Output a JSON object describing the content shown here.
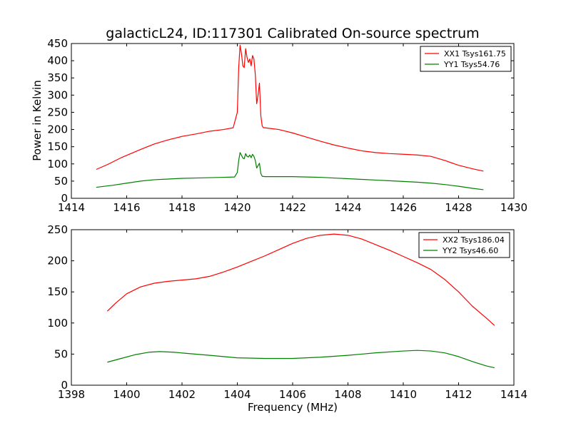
{
  "figure": {
    "title": "galacticL24, ID:117301 Calibrated On-source spectrum",
    "xlabel": "Frequency (MHz)",
    "ylabel": "Power in Kelvin"
  },
  "chart_data": [
    {
      "type": "line",
      "xlim": [
        1414,
        1430
      ],
      "ylim": [
        0,
        450
      ],
      "x_ticks": [
        "1414",
        "1416",
        "1418",
        "1420",
        "1422",
        "1424",
        "1426",
        "1428",
        "1430"
      ],
      "y_ticks": [
        "0",
        "50",
        "100",
        "150",
        "200",
        "250",
        "300",
        "350",
        "400",
        "450"
      ],
      "grid": false,
      "legend_position": "top-right",
      "series": [
        {
          "name": "XX1 Tsys161.75",
          "color": "#ff0000",
          "x": [
            1414.9,
            1415.3,
            1415.8,
            1416.5,
            1417.0,
            1417.5,
            1418.0,
            1418.5,
            1419.0,
            1419.5,
            1419.85,
            1420.0,
            1420.05,
            1420.1,
            1420.15,
            1420.2,
            1420.25,
            1420.3,
            1420.35,
            1420.4,
            1420.45,
            1420.5,
            1420.55,
            1420.6,
            1420.65,
            1420.7,
            1420.75,
            1420.8,
            1420.85,
            1420.9,
            1420.95,
            1421.0,
            1421.5,
            1422.0,
            1422.5,
            1423.0,
            1423.5,
            1424.0,
            1424.5,
            1425.0,
            1425.5,
            1426.0,
            1426.5,
            1427.0,
            1427.5,
            1428.0,
            1428.5,
            1428.9
          ],
          "values": [
            84,
            98,
            118,
            142,
            158,
            170,
            180,
            187,
            195,
            200,
            205,
            250,
            380,
            445,
            420,
            385,
            380,
            435,
            410,
            395,
            405,
            385,
            415,
            405,
            360,
            275,
            300,
            335,
            240,
            210,
            205,
            205,
            200,
            190,
            178,
            166,
            155,
            146,
            138,
            133,
            130,
            128,
            126,
            122,
            110,
            96,
            86,
            79
          ]
        },
        {
          "name": "YY1 Tsys54.76",
          "color": "#008000",
          "x": [
            1414.9,
            1415.5,
            1416.0,
            1416.5,
            1417.0,
            1417.5,
            1418.0,
            1418.5,
            1419.0,
            1419.5,
            1419.9,
            1420.0,
            1420.05,
            1420.1,
            1420.15,
            1420.2,
            1420.25,
            1420.3,
            1420.35,
            1420.4,
            1420.45,
            1420.5,
            1420.55,
            1420.6,
            1420.65,
            1420.7,
            1420.75,
            1420.8,
            1420.85,
            1420.9,
            1421.0,
            1421.5,
            1422.0,
            1422.5,
            1423.0,
            1423.5,
            1424.0,
            1424.5,
            1425.0,
            1425.5,
            1426.0,
            1426.5,
            1427.0,
            1427.5,
            1428.0,
            1428.5,
            1428.9
          ],
          "values": [
            32,
            38,
            44,
            50,
            54,
            56,
            58,
            59,
            60,
            61,
            62,
            75,
            110,
            133,
            125,
            117,
            115,
            130,
            122,
            120,
            126,
            118,
            128,
            122,
            110,
            88,
            95,
            102,
            72,
            64,
            63,
            63,
            63,
            62,
            61,
            59,
            57,
            55,
            53,
            51,
            49,
            47,
            44,
            40,
            35,
            29,
            25
          ]
        }
      ]
    },
    {
      "type": "line",
      "xlim": [
        1398,
        1414
      ],
      "ylim": [
        0,
        250
      ],
      "x_ticks": [
        "1398",
        "1400",
        "1402",
        "1404",
        "1406",
        "1408",
        "1410",
        "1412",
        "1414"
      ],
      "y_ticks": [
        "0",
        "50",
        "100",
        "150",
        "200",
        "250"
      ],
      "grid": false,
      "legend_position": "top-right",
      "series": [
        {
          "name": "XX2 Tsys186.04",
          "color": "#ff0000",
          "x": [
            1399.3,
            1399.6,
            1400.0,
            1400.5,
            1401.0,
            1401.5,
            1402.0,
            1402.5,
            1403.0,
            1403.5,
            1404.0,
            1404.5,
            1405.0,
            1405.5,
            1406.0,
            1406.5,
            1407.0,
            1407.5,
            1408.0,
            1408.5,
            1409.0,
            1409.5,
            1410.0,
            1410.5,
            1411.0,
            1411.5,
            1412.0,
            1412.5,
            1413.0,
            1413.3
          ],
          "values": [
            119,
            132,
            147,
            158,
            164,
            167,
            169,
            171,
            175,
            182,
            190,
            199,
            208,
            218,
            228,
            236,
            241,
            243,
            241,
            235,
            226,
            217,
            207,
            197,
            186,
            170,
            150,
            127,
            108,
            96
          ]
        },
        {
          "name": "YY2 Tsys46.60",
          "color": "#008000",
          "x": [
            1399.3,
            1399.8,
            1400.3,
            1400.8,
            1401.2,
            1401.7,
            1402.2,
            1403.0,
            1404.0,
            1405.0,
            1406.0,
            1407.0,
            1408.0,
            1409.0,
            1410.0,
            1410.5,
            1411.0,
            1411.5,
            1412.0,
            1412.5,
            1413.0,
            1413.3
          ],
          "values": [
            37,
            43,
            49,
            53,
            54,
            53,
            51,
            48,
            44,
            43,
            43,
            45,
            48,
            52,
            55,
            56,
            55,
            52,
            46,
            38,
            31,
            28
          ]
        }
      ]
    }
  ]
}
